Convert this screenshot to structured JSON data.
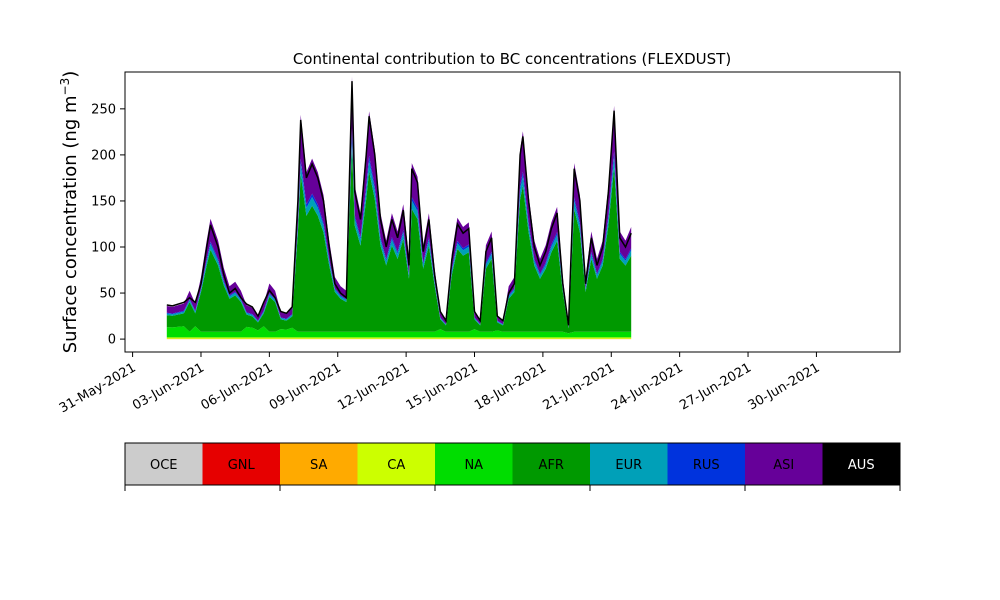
{
  "chart_data": {
    "type": "area",
    "stacked": true,
    "title": "Continental contribution to BC concentrations (FLEXDUST)",
    "ylabel": "Surface concentration (ng m",
    "ylabel_sup": "−3",
    "ylabel_close": ")",
    "xlabel": "",
    "x_start": "2021-06-01T12:00",
    "x_step_hours": 3,
    "xlim": [
      "2021-05-30T16:00",
      "2021-07-03T16:00"
    ],
    "ylim": [
      -14,
      290
    ],
    "yticks": [
      0,
      50,
      100,
      150,
      200,
      250
    ],
    "xticks": [
      {
        "date": "2021-05-31",
        "label": "31-May-2021"
      },
      {
        "date": "2021-06-03",
        "label": "03-Jun-2021"
      },
      {
        "date": "2021-06-06",
        "label": "06-Jun-2021"
      },
      {
        "date": "2021-06-09",
        "label": "09-Jun-2021"
      },
      {
        "date": "2021-06-12",
        "label": "12-Jun-2021"
      },
      {
        "date": "2021-06-15",
        "label": "15-Jun-2021"
      },
      {
        "date": "2021-06-18",
        "label": "18-Jun-2021"
      },
      {
        "date": "2021-06-21",
        "label": "21-Jun-2021"
      },
      {
        "date": "2021-06-24",
        "label": "24-Jun-2021"
      },
      {
        "date": "2021-06-27",
        "label": "27-Jun-2021"
      },
      {
        "date": "2021-06-30",
        "label": "30-Jun-2021"
      }
    ],
    "grid": false,
    "total_peaks": [
      [
        "2021-06-01T12:00",
        37
      ],
      [
        "2021-06-01T18:00",
        36
      ],
      [
        "2021-06-02T06:00",
        40
      ],
      [
        "2021-06-02T12:00",
        45
      ],
      [
        "2021-06-02T18:00",
        40
      ],
      [
        "2021-06-03T00:00",
        60
      ],
      [
        "2021-06-03T06:00",
        100
      ],
      [
        "2021-06-03T10:00",
        124
      ],
      [
        "2021-06-03T18:00",
        100
      ],
      [
        "2021-06-04T00:00",
        70
      ],
      [
        "2021-06-04T06:00",
        50
      ],
      [
        "2021-06-04T12:00",
        55
      ],
      [
        "2021-06-04T18:00",
        45
      ],
      [
        "2021-06-05T00:00",
        38
      ],
      [
        "2021-06-05T06:00",
        35
      ],
      [
        "2021-06-05T12:00",
        25
      ],
      [
        "2021-06-05T18:00",
        40
      ],
      [
        "2021-06-06T00:00",
        53
      ],
      [
        "2021-06-06T06:00",
        45
      ],
      [
        "2021-06-06T12:00",
        30
      ],
      [
        "2021-06-06T18:00",
        28
      ],
      [
        "2021-06-07T00:00",
        35
      ],
      [
        "2021-06-07T06:00",
        150
      ],
      [
        "2021-06-07T09:00",
        238
      ],
      [
        "2021-06-07T15:00",
        175
      ],
      [
        "2021-06-07T21:00",
        190
      ],
      [
        "2021-06-08T03:00",
        175
      ],
      [
        "2021-06-08T09:00",
        150
      ],
      [
        "2021-06-08T15:00",
        100
      ],
      [
        "2021-06-08T21:00",
        60
      ],
      [
        "2021-06-09T03:00",
        50
      ],
      [
        "2021-06-09T09:00",
        45
      ],
      [
        "2021-06-09T15:00",
        280
      ],
      [
        "2021-06-09T18:00",
        160
      ],
      [
        "2021-06-10T00:00",
        130
      ],
      [
        "2021-06-10T06:00",
        200
      ],
      [
        "2021-06-10T09:00",
        242
      ],
      [
        "2021-06-10T15:00",
        200
      ],
      [
        "2021-06-10T21:00",
        130
      ],
      [
        "2021-06-11T03:00",
        100
      ],
      [
        "2021-06-11T09:00",
        130
      ],
      [
        "2021-06-11T15:00",
        110
      ],
      [
        "2021-06-11T21:00",
        140
      ],
      [
        "2021-06-12T03:00",
        80
      ],
      [
        "2021-06-12T06:00",
        185
      ],
      [
        "2021-06-12T12:00",
        170
      ],
      [
        "2021-06-12T18:00",
        95
      ],
      [
        "2021-06-13T00:00",
        130
      ],
      [
        "2021-06-13T06:00",
        70
      ],
      [
        "2021-06-13T12:00",
        30
      ],
      [
        "2021-06-13T18:00",
        20
      ],
      [
        "2021-06-14T00:00",
        85
      ],
      [
        "2021-06-14T06:00",
        125
      ],
      [
        "2021-06-14T12:00",
        115
      ],
      [
        "2021-06-14T18:00",
        120
      ],
      [
        "2021-06-15T00:00",
        30
      ],
      [
        "2021-06-15T06:00",
        20
      ],
      [
        "2021-06-15T12:00",
        95
      ],
      [
        "2021-06-15T18:00",
        110
      ],
      [
        "2021-06-16T00:00",
        25
      ],
      [
        "2021-06-16T06:00",
        20
      ],
      [
        "2021-06-16T12:00",
        50
      ],
      [
        "2021-06-16T18:00",
        60
      ],
      [
        "2021-06-17T00:00",
        200
      ],
      [
        "2021-06-17T03:00",
        220
      ],
      [
        "2021-06-17T09:00",
        150
      ],
      [
        "2021-06-17T15:00",
        100
      ],
      [
        "2021-06-17T21:00",
        80
      ],
      [
        "2021-06-18T03:00",
        95
      ],
      [
        "2021-06-18T09:00",
        120
      ],
      [
        "2021-06-18T15:00",
        137
      ],
      [
        "2021-06-18T21:00",
        60
      ],
      [
        "2021-06-19T03:00",
        15
      ],
      [
        "2021-06-19T09:00",
        185
      ],
      [
        "2021-06-19T15:00",
        150
      ],
      [
        "2021-06-19T21:00",
        60
      ],
      [
        "2021-06-20T03:00",
        110
      ],
      [
        "2021-06-20T09:00",
        80
      ],
      [
        "2021-06-20T15:00",
        100
      ],
      [
        "2021-06-20T21:00",
        160
      ],
      [
        "2021-06-21T03:00",
        248
      ],
      [
        "2021-06-21T09:00",
        110
      ],
      [
        "2021-06-21T15:00",
        100
      ],
      [
        "2021-06-21T21:00",
        115
      ]
    ],
    "series": [
      {
        "name": "OCE",
        "color": "#cccccc"
      },
      {
        "name": "GNL",
        "color": "#e60000"
      },
      {
        "name": "SA",
        "color": "#ffaa00"
      },
      {
        "name": "CA",
        "color": "#ccff00"
      },
      {
        "name": "NA",
        "color": "#00dd00"
      },
      {
        "name": "AFR",
        "color": "#009900"
      },
      {
        "name": "EUR",
        "color": "#00a0b8"
      },
      {
        "name": "RUS",
        "color": "#0033dd"
      },
      {
        "name": "ASI",
        "color": "#660099"
      },
      {
        "name": "AUS",
        "color": "#000000"
      }
    ]
  },
  "legend": {
    "placement": "below-chart",
    "items": [
      {
        "label": "OCE",
        "color": "#cccccc",
        "text_color": "#000000"
      },
      {
        "label": "GNL",
        "color": "#e60000",
        "text_color": "#000000"
      },
      {
        "label": "SA",
        "color": "#ffaa00",
        "text_color": "#000000"
      },
      {
        "label": "CA",
        "color": "#ccff00",
        "text_color": "#000000"
      },
      {
        "label": "NA",
        "color": "#00dd00",
        "text_color": "#000000"
      },
      {
        "label": "AFR",
        "color": "#009900",
        "text_color": "#000000"
      },
      {
        "label": "EUR",
        "color": "#00a0b8",
        "text_color": "#000000"
      },
      {
        "label": "RUS",
        "color": "#0033dd",
        "text_color": "#000000"
      },
      {
        "label": "ASI",
        "color": "#660099",
        "text_color": "#000000"
      },
      {
        "label": "AUS",
        "color": "#000000",
        "text_color": "#ffffff"
      }
    ]
  }
}
